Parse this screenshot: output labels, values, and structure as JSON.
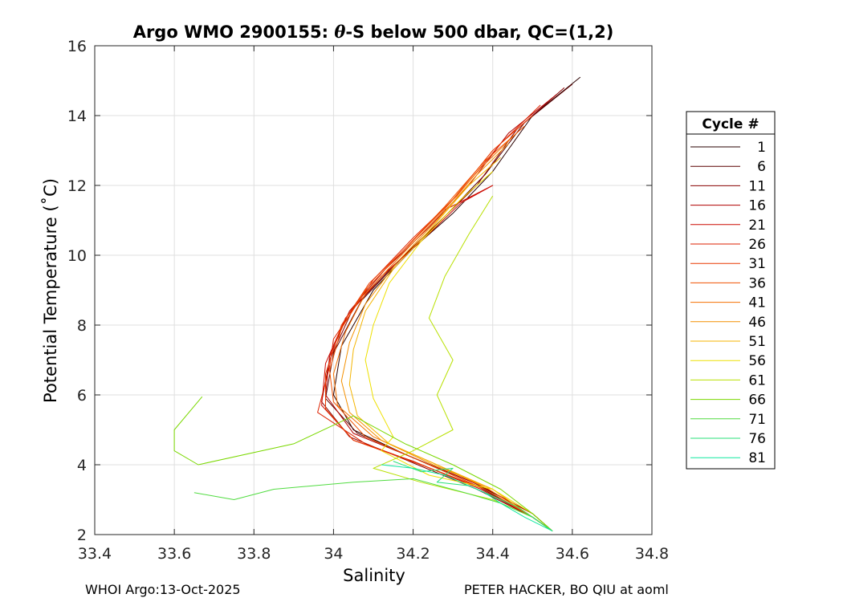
{
  "chart_data": {
    "type": "line",
    "title_prefix": "Argo WMO 2900155: ",
    "title_theta": "θ",
    "title_suffix": "-S below 500 dbar,  QC=(1,2)",
    "xlabel": "Salinity",
    "ylabel": "Potential Temperature (˚C)",
    "xlim": [
      33.4,
      34.8
    ],
    "ylim": [
      2,
      16
    ],
    "xticks": [
      33.4,
      33.6,
      33.8,
      34,
      34.2,
      34.4,
      34.6,
      34.8
    ],
    "xtick_labels": [
      "33.4",
      "33.6",
      "33.8",
      "34",
      "34.2",
      "34.4",
      "34.6",
      "34.8"
    ],
    "yticks": [
      2,
      4,
      6,
      8,
      10,
      12,
      14,
      16
    ],
    "ytick_labels": [
      "2",
      "4",
      "6",
      "8",
      "10",
      "12",
      "14",
      "16"
    ],
    "grid": true,
    "legend_title": "Cycle #",
    "legend_position": "right",
    "series": [
      {
        "name": "1",
        "color": "#2a0000",
        "s": [
          34.62,
          34.5,
          34.4,
          34.3,
          34.2,
          34.1,
          34.02,
          34.0,
          34.05,
          34.18,
          34.35,
          34.5,
          34.55
        ],
        "t": [
          15.1,
          14.0,
          12.4,
          11.2,
          10.2,
          9.0,
          7.4,
          6.0,
          5.0,
          4.3,
          3.5,
          2.6,
          2.1
        ]
      },
      {
        "name": "6",
        "color": "#5a0000",
        "s": [
          34.6,
          34.48,
          34.38,
          34.27,
          34.17,
          34.07,
          34.0,
          33.98,
          34.06,
          34.2,
          34.36,
          34.5,
          34.55
        ],
        "t": [
          14.9,
          13.8,
          12.3,
          11.0,
          9.9,
          8.7,
          7.2,
          5.9,
          4.9,
          4.2,
          3.4,
          2.5,
          2.1
        ]
      },
      {
        "name": "11",
        "color": "#880000",
        "s": [
          34.58,
          34.46,
          34.36,
          34.26,
          34.15,
          34.05,
          33.99,
          33.97,
          34.04,
          34.19,
          34.36,
          34.5,
          34.55
        ],
        "t": [
          14.8,
          13.6,
          12.0,
          10.9,
          9.7,
          8.5,
          7.0,
          5.8,
          4.8,
          4.1,
          3.3,
          2.5,
          2.1
        ]
      },
      {
        "name": "16",
        "color": "#b00000",
        "s": [
          34.56,
          34.44,
          34.34,
          34.24,
          34.13,
          34.04,
          33.99,
          33.98,
          34.05,
          34.2,
          34.37,
          34.5,
          34.55
        ],
        "t": [
          14.6,
          13.5,
          12.0,
          10.8,
          9.6,
          8.4,
          7.1,
          6.0,
          4.9,
          4.2,
          3.4,
          2.6,
          2.1
        ]
      },
      {
        "name": "21",
        "color": "#cc0a00",
        "s": [
          34.28,
          34.4,
          34.32,
          34.22,
          34.12,
          34.03,
          33.98,
          33.97,
          34.05,
          34.2,
          34.37,
          34.5,
          34.55
        ],
        "t": [
          11.3,
          12.0,
          11.5,
          10.4,
          9.4,
          8.2,
          6.9,
          5.7,
          4.7,
          4.1,
          3.3,
          2.5,
          2.1
        ]
      },
      {
        "name": "26",
        "color": "#dd2200",
        "s": [
          34.52,
          34.42,
          34.31,
          34.2,
          34.1,
          34.0,
          33.99,
          33.96,
          34.08,
          34.22,
          34.38,
          34.5,
          34.55
        ],
        "t": [
          14.3,
          13.2,
          11.7,
          10.5,
          9.3,
          7.6,
          6.8,
          5.5,
          4.6,
          4.0,
          3.3,
          2.5,
          2.1
        ]
      },
      {
        "name": "31",
        "color": "#e83800",
        "s": [
          34.5,
          34.4,
          34.3,
          34.19,
          34.09,
          34.02,
          33.98,
          33.98,
          34.05,
          34.22,
          34.38,
          34.5,
          34.55
        ],
        "t": [
          14.0,
          13.0,
          11.6,
          10.3,
          9.2,
          8.0,
          6.6,
          5.6,
          4.7,
          4.0,
          3.3,
          2.5,
          2.1
        ]
      },
      {
        "name": "36",
        "color": "#f05000",
        "s": [
          34.48,
          34.38,
          34.28,
          34.18,
          34.08,
          34.02,
          33.99,
          34.0,
          34.08,
          34.22,
          34.38,
          34.5,
          34.55
        ],
        "t": [
          13.7,
          12.7,
          11.4,
          10.2,
          9.0,
          7.9,
          6.7,
          5.8,
          4.8,
          4.1,
          3.3,
          2.5,
          2.1
        ]
      },
      {
        "name": "41",
        "color": "#f47000",
        "s": [
          34.46,
          34.37,
          34.27,
          34.17,
          34.08,
          34.03,
          34.0,
          34.01,
          34.1,
          34.24,
          34.39,
          34.5,
          34.55
        ],
        "t": [
          13.5,
          12.5,
          11.2,
          10.0,
          8.9,
          7.8,
          6.6,
          5.7,
          4.8,
          4.1,
          3.3,
          2.5,
          2.1
        ]
      },
      {
        "name": "46",
        "color": "#f49000",
        "s": [
          34.44,
          34.36,
          34.26,
          34.16,
          34.08,
          34.04,
          34.02,
          34.04,
          34.12,
          34.25,
          34.4,
          34.5,
          34.55
        ],
        "t": [
          13.2,
          12.3,
          11.0,
          9.8,
          8.6,
          7.5,
          6.4,
          5.5,
          4.7,
          4.0,
          3.3,
          2.5,
          2.1
        ]
      },
      {
        "name": "51",
        "color": "#f4b400",
        "s": [
          34.42,
          34.34,
          34.24,
          34.15,
          34.08,
          34.05,
          34.04,
          34.06,
          34.14,
          34.26,
          34.4,
          34.5,
          34.55
        ],
        "t": [
          12.8,
          12.0,
          10.7,
          9.6,
          8.4,
          7.3,
          6.3,
          5.4,
          4.6,
          4.0,
          3.3,
          2.5,
          2.1
        ]
      },
      {
        "name": "56",
        "color": "#eee000",
        "s": [
          34.4,
          34.32,
          34.22,
          34.14,
          34.1,
          34.08,
          34.1,
          34.15,
          34.12,
          34.24,
          34.4,
          34.5,
          34.55
        ],
        "t": [
          12.4,
          11.6,
          10.4,
          9.2,
          8.0,
          7.0,
          5.9,
          4.8,
          4.4,
          3.7,
          3.3,
          2.6,
          2.1
        ]
      },
      {
        "name": "61",
        "color": "#b8e000",
        "s": [
          34.4,
          34.34,
          34.28,
          34.24,
          34.3,
          34.26,
          34.3,
          34.2,
          34.1,
          34.22,
          34.4,
          34.5,
          34.55
        ],
        "t": [
          11.7,
          10.6,
          9.4,
          8.2,
          7.0,
          6.0,
          5.0,
          4.4,
          3.9,
          3.5,
          3.0,
          2.5,
          2.1
        ]
      },
      {
        "name": "66",
        "color": "#7ad800",
        "s": [
          33.67,
          33.6,
          33.6,
          33.66,
          33.9,
          34.05,
          34.18,
          34.3,
          34.42,
          34.5,
          34.55
        ],
        "t": [
          5.95,
          5.0,
          4.4,
          4.0,
          4.6,
          5.4,
          4.6,
          4.0,
          3.3,
          2.6,
          2.1
        ]
      },
      {
        "name": "71",
        "color": "#50dc40",
        "s": [
          33.65,
          33.75,
          33.85,
          34.05,
          34.2,
          34.33,
          34.42,
          34.5,
          34.55
        ],
        "t": [
          3.2,
          3.0,
          3.3,
          3.5,
          3.6,
          3.2,
          2.9,
          2.5,
          2.1
        ]
      },
      {
        "name": "76",
        "color": "#28e07a",
        "s": [
          34.15,
          34.22,
          34.3,
          34.26,
          34.34,
          34.4,
          34.46,
          34.5,
          34.55
        ],
        "t": [
          4.1,
          3.8,
          3.9,
          3.5,
          3.4,
          3.1,
          2.8,
          2.5,
          2.1
        ]
      },
      {
        "name": "81",
        "color": "#10e8a0",
        "s": [
          34.12,
          34.2,
          34.28,
          34.32,
          34.38,
          34.42,
          34.48,
          34.55
        ],
        "t": [
          4.0,
          3.9,
          3.7,
          3.5,
          3.2,
          2.9,
          2.5,
          2.1
        ]
      }
    ]
  },
  "footer": {
    "left": "WHOI Argo:13-Oct-2025",
    "right": "PETER HACKER, BO QIU at aoml"
  }
}
